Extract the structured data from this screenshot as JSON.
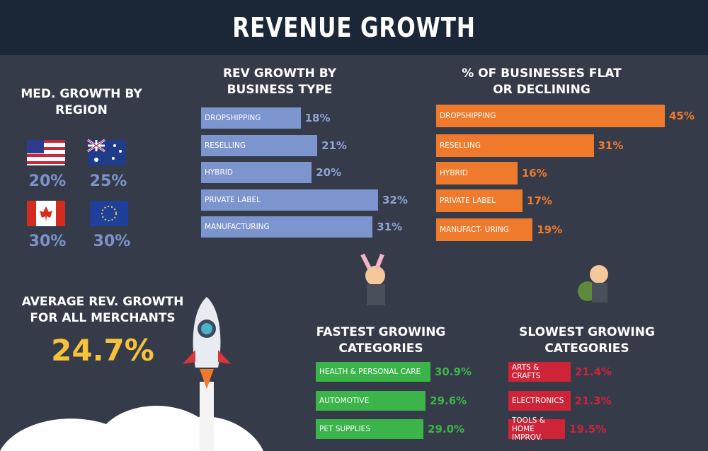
{
  "title": "REVENUE GROWTH",
  "region": {
    "title": "MED. GROWTH BY REGION",
    "values": [
      "20%",
      "25%",
      "30%",
      "30%"
    ]
  },
  "average": {
    "title": "AVERAGE REV. GROWTH FOR ALL MERCHANTS",
    "value": "24.7%"
  },
  "chart_data": [
    {
      "type": "hbar",
      "title": "REV GROWTH BY BUSINESS TYPE",
      "categories": [
        "DROPSHIPPING",
        "RESELLING",
        "HYBRID",
        "PRIVATE LABEL",
        "MANUFACTURING"
      ],
      "values": [
        18,
        21,
        20,
        32,
        31
      ],
      "value_labels": [
        "18%",
        "21%",
        "20%",
        "32%",
        "31%"
      ],
      "color": "#7d95cf"
    },
    {
      "type": "hbar",
      "title": "% OF BUSINESSES FLAT OR DECLINING",
      "categories": [
        "DROPSHIPPING",
        "RESELLING",
        "HYBRID",
        "PRIVATE LABEL",
        "MANUFACT- URING"
      ],
      "values": [
        45,
        31,
        16,
        17,
        19
      ],
      "value_labels": [
        "45%",
        "31%",
        "16%",
        "17%",
        "19%"
      ],
      "color": "#f07a2b"
    },
    {
      "type": "hbar",
      "title": "FASTEST GROWING CATEGORIES",
      "categories": [
        "HEALTH & PERSONAL CARE",
        "AUTOMOTIVE",
        "PET SUPPLIES"
      ],
      "values": [
        30.9,
        29.6,
        29.0
      ],
      "value_labels": [
        "30.9%",
        "29.6%",
        "29.0%"
      ],
      "color": "#3bb54a"
    },
    {
      "type": "hbar",
      "title": "SLOWEST GROWING CATEGORIES",
      "categories": [
        "ARTS & CRAFTS",
        "ELECTRONICS",
        "TOOLS & HOME IMPROV."
      ],
      "values": [
        21.4,
        21.3,
        19.5
      ],
      "value_labels": [
        "21.4%",
        "21.3%",
        "19.5%"
      ],
      "color": "#cf2438"
    }
  ]
}
